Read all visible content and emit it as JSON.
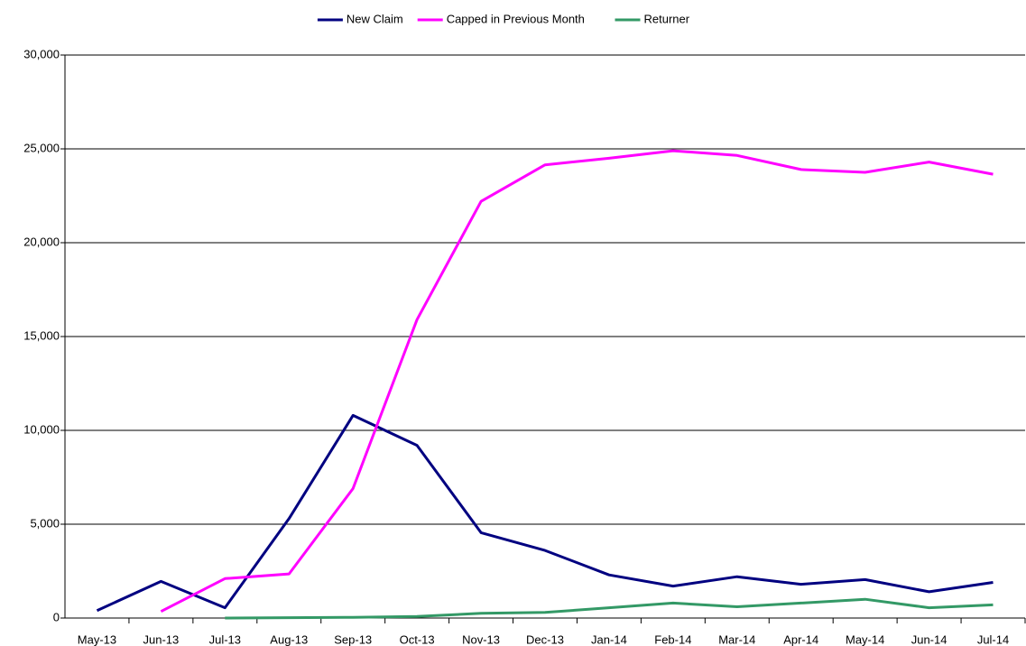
{
  "chart_data": {
    "type": "line",
    "categories": [
      "May-13",
      "Jun-13",
      "Jul-13",
      "Aug-13",
      "Sep-13",
      "Oct-13",
      "Nov-13",
      "Dec-13",
      "Jan-14",
      "Feb-14",
      "Mar-14",
      "Apr-14",
      "May-14",
      "Jun-14",
      "Jul-14"
    ],
    "series": [
      {
        "name": "New Claim",
        "color": "#000080",
        "values": [
          400,
          1950,
          550,
          5300,
          10800,
          9200,
          4550,
          3600,
          2300,
          1700,
          2200,
          1800,
          2050,
          1400,
          1900
        ]
      },
      {
        "name": "Capped in Previous Month",
        "color": "#ff00ff",
        "values": [
          null,
          350,
          2100,
          2350,
          6900,
          15900,
          22200,
          24150,
          24500,
          24900,
          24650,
          23900,
          23750,
          24300,
          23650
        ]
      },
      {
        "name": "Returner",
        "color": "#339966",
        "values": [
          null,
          null,
          0,
          20,
          40,
          80,
          250,
          300,
          550,
          800,
          600,
          800,
          1000,
          550,
          700
        ]
      }
    ],
    "ylim": [
      0,
      30000
    ],
    "yticks": [
      0,
      {
        "value": 5000,
        "label": "5,000"
      },
      {
        "value": 10000,
        "label": "10,000"
      },
      {
        "value": 15000,
        "label": "15,000"
      },
      {
        "value": 20000,
        "label": "20,000"
      },
      {
        "value": 25000,
        "label": "25,000"
      },
      {
        "value": 30000,
        "label": "30,000"
      }
    ],
    "grid": true,
    "legend": "top"
  }
}
